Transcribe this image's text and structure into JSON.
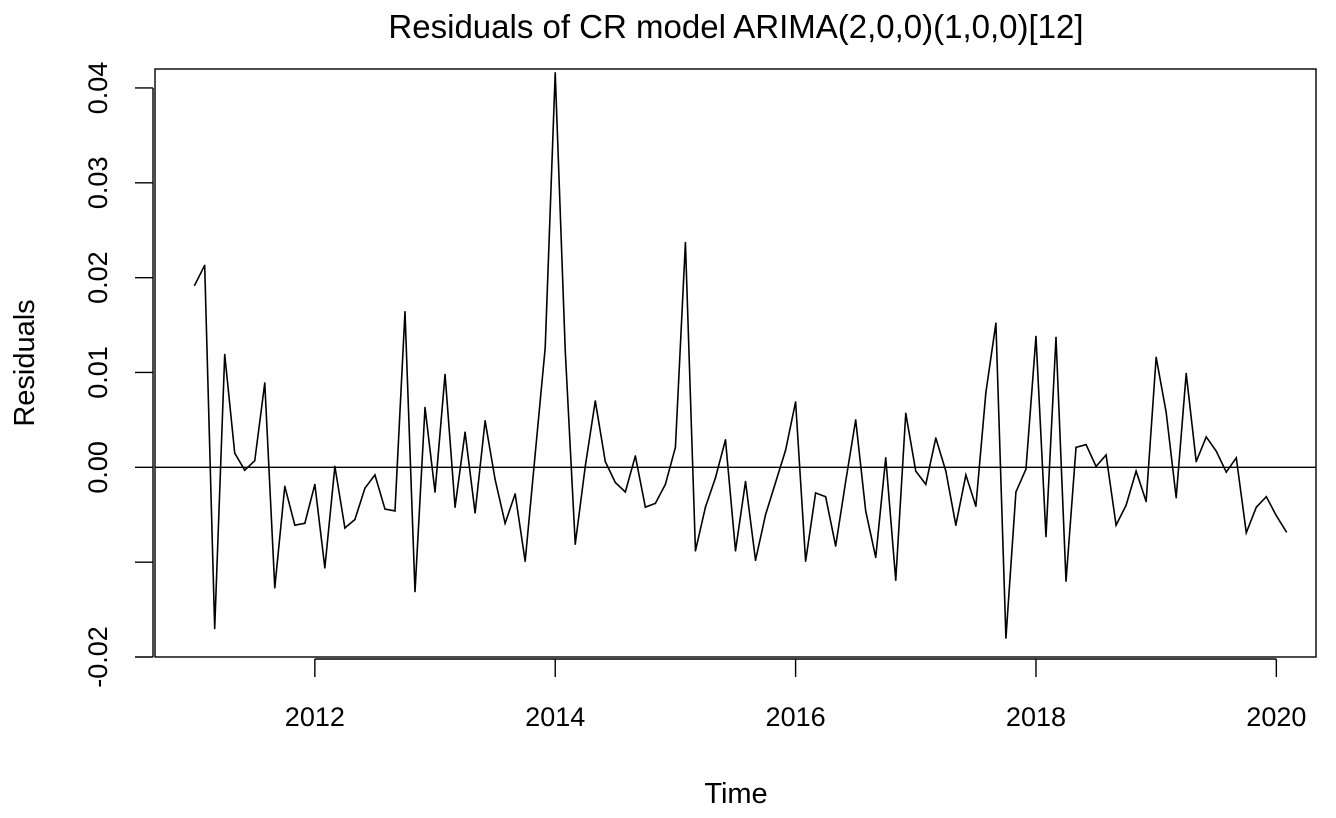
{
  "chart_data": {
    "type": "line",
    "title": "Residuals of CR model ARIMA(2,0,0)(1,0,0)[12]",
    "xlabel": "Time",
    "ylabel": "Residuals",
    "xlim": [
      2010.67,
      2020.33
    ],
    "ylim": [
      -0.02,
      0.042
    ],
    "x_ticks": [
      2012,
      2014,
      2016,
      2018,
      2020
    ],
    "x_tick_labels": [
      "2012",
      "2014",
      "2016",
      "2018",
      "2020"
    ],
    "y_ticks": [
      -0.02,
      -0.01,
      0.0,
      0.01,
      0.02,
      0.03,
      0.04
    ],
    "y_tick_labels": [
      "-0.02",
      "",
      "0.00",
      "0.01",
      "0.02",
      "0.03",
      "0.04"
    ],
    "reference_line": 0,
    "grid": false,
    "series": [
      {
        "start": 2011.0,
        "frequency": 12,
        "values": [
          0.0192,
          0.0213,
          -0.017,
          0.0119,
          0.0015,
          -0.0003,
          0.0007,
          0.0089,
          -0.0127,
          -0.002,
          -0.0061,
          -0.0059,
          -0.0018,
          -0.0106,
          0.0001,
          -0.0064,
          -0.0055,
          -0.0022,
          -0.0008,
          -0.0044,
          -0.0046,
          0.0164,
          -0.0131,
          0.0063,
          -0.0026,
          0.0098,
          -0.0042,
          0.0037,
          -0.0048,
          0.0049,
          -0.0013,
          -0.0059,
          -0.0028,
          -0.0099,
          0.0014,
          0.0126,
          0.0416,
          0.0123,
          -0.0081,
          0.0001,
          0.007,
          0.0006,
          -0.0016,
          -0.0026,
          0.0012,
          -0.0042,
          -0.0038,
          -0.0018,
          0.0021,
          0.0237,
          -0.0088,
          -0.0042,
          -0.0011,
          0.0029,
          -0.0088,
          -0.0015,
          -0.0098,
          -0.005,
          -0.0016,
          0.0018,
          0.0069,
          -0.0099,
          -0.0027,
          -0.0031,
          -0.0083,
          -0.0015,
          0.005,
          -0.0046,
          -0.0095,
          0.001,
          -0.0119,
          0.0057,
          -0.0004,
          -0.0018,
          0.0031,
          -0.0004,
          -0.0061,
          -0.0008,
          -0.0041,
          0.0079,
          0.0152,
          -0.018,
          -0.0026,
          -0.0002,
          0.0138,
          -0.0073,
          0.0137,
          -0.012,
          0.0021,
          0.0024,
          0.0001,
          0.0013,
          -0.0061,
          -0.004,
          -0.0004,
          -0.0036,
          0.0116,
          0.0058,
          -0.0032,
          0.0099,
          0.0006,
          0.0032,
          0.0017,
          -0.0005,
          0.001,
          -0.0069,
          -0.0042,
          -0.0031,
          -0.0051,
          -0.0068
        ]
      }
    ]
  }
}
